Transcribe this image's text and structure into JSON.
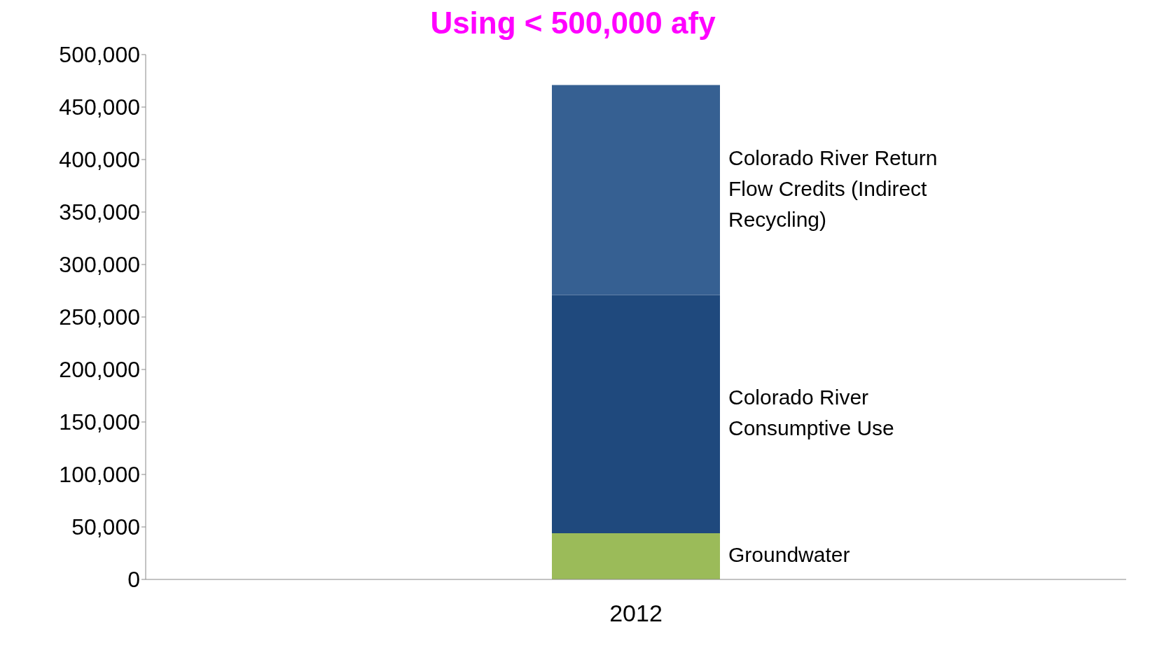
{
  "chart_data": {
    "type": "bar",
    "title": "Using < 500,000 afy",
    "categories": [
      "2012"
    ],
    "stacked": true,
    "series": [
      {
        "name": "Groundwater",
        "color": "#9bbb59",
        "values": [
          44000
        ]
      },
      {
        "name": "Colorado River Consumptive Use",
        "color": "#1f497d",
        "values": [
          227000
        ]
      },
      {
        "name": "Colorado River Return Flow Credits (Indirect Recycling)",
        "color": "#366092",
        "values": [
          200000
        ]
      }
    ],
    "ylim": [
      0,
      500000
    ],
    "yticks": [
      0,
      {
        "value": 50000,
        "label": "50,000"
      },
      {
        "value": 100000,
        "label": "100,000"
      },
      {
        "value": 150000,
        "label": "150,000"
      },
      {
        "value": 200000,
        "label": "200,000"
      },
      {
        "value": 250000,
        "label": "250,000"
      },
      {
        "value": 300000,
        "label": "300,000"
      },
      {
        "value": 350000,
        "label": "350,000"
      },
      {
        "value": 400000,
        "label": "400,000"
      },
      {
        "value": 450000,
        "label": "450,000"
      },
      {
        "value": 500000,
        "label": "500,000"
      }
    ],
    "grid": false,
    "legend": false
  }
}
